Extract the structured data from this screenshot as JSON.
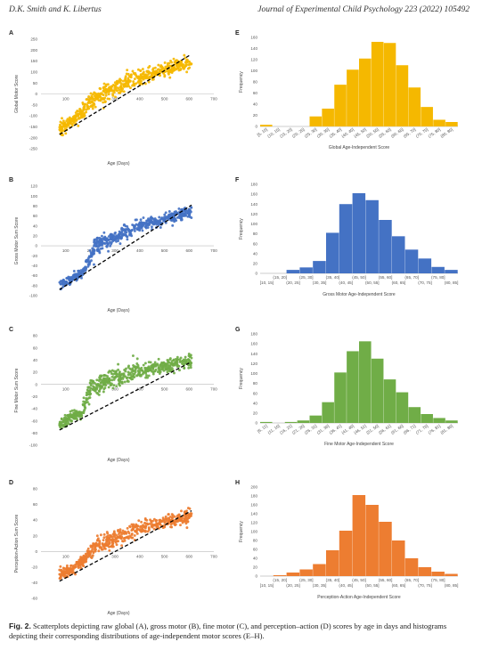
{
  "header": {
    "left": "D.K. Smith and K. Libertus",
    "right": "Journal of Experimental Child Psychology 223 (2022) 105492"
  },
  "caption": {
    "prefix": "Fig. 2.",
    "text": "Scatterplots depicting raw global (A), gross motor (B), fine motor (C), and perception–action (D) scores by age in days and histograms depicting their corresponding distributions of age-independent motor scores (E–H)."
  },
  "colors": {
    "A": "#F5B800",
    "B": "#4472C4",
    "C": "#70AD47",
    "D": "#ED7D31",
    "trend": "#000000"
  },
  "chart_data": [
    {
      "panel": "A",
      "type": "scatter",
      "xlabel": "Age (Days)",
      "ylabel": "Global Motor Score",
      "xlim": [
        0,
        700
      ],
      "ylim": [
        -250,
        250
      ],
      "x_ticks": [
        100,
        200,
        300,
        400,
        500,
        600,
        700
      ],
      "y_ticks": [
        250,
        200,
        150,
        100,
        50,
        0,
        -50,
        -100,
        -150,
        -200,
        -250
      ],
      "trend": {
        "style": "dashed",
        "x": [
          75,
          600
        ],
        "y": [
          -185,
          175
        ]
      },
      "clusters": [
        {
          "x": [
            75,
            165
          ],
          "y_at_start": -165,
          "y_at_end": -85,
          "n": 115,
          "spread": 25
        },
        {
          "x": [
            165,
            205
          ],
          "y_at_start": -85,
          "y_at_end": -25,
          "n": 45,
          "spread": 32
        },
        {
          "x": [
            205,
            325
          ],
          "y_at_start": -30,
          "y_at_end": 45,
          "n": 135,
          "spread": 35
        },
        {
          "x": [
            325,
            395
          ],
          "y_at_start": 40,
          "y_at_end": 75,
          "n": 60,
          "spread": 35
        },
        {
          "x": [
            395,
            610
          ],
          "y_at_start": 70,
          "y_at_end": 150,
          "n": 210,
          "spread": 28
        }
      ]
    },
    {
      "panel": "B",
      "type": "scatter",
      "xlabel": "Age (Days)",
      "ylabel": "Gross Motor Sum Score",
      "xlim": [
        0,
        700
      ],
      "ylim": [
        -100,
        120
      ],
      "x_ticks": [
        100,
        200,
        300,
        400,
        500,
        600,
        700
      ],
      "y_ticks": [
        120,
        100,
        80,
        60,
        40,
        20,
        0,
        -20,
        -40,
        -60,
        -80,
        -100
      ],
      "trend": {
        "style": "dashed",
        "x": [
          75,
          610
        ],
        "y": [
          -88,
          82
        ]
      },
      "clusters": [
        {
          "x": [
            75,
            175
          ],
          "y_at_start": -78,
          "y_at_end": -52,
          "n": 110,
          "spread": 9
        },
        {
          "x": [
            175,
            215
          ],
          "y_at_start": -45,
          "y_at_end": -10,
          "n": 45,
          "spread": 14
        },
        {
          "x": [
            215,
            330
          ],
          "y_at_start": 0,
          "y_at_end": 25,
          "n": 140,
          "spread": 13
        },
        {
          "x": [
            330,
            400
          ],
          "y_at_start": 25,
          "y_at_end": 40,
          "n": 60,
          "spread": 14
        },
        {
          "x": [
            400,
            610
          ],
          "y_at_start": 40,
          "y_at_end": 70,
          "n": 210,
          "spread": 11
        }
      ]
    },
    {
      "panel": "C",
      "type": "scatter",
      "xlabel": "Age (Days)",
      "ylabel": "Fine Motor Sum Score",
      "xlim": [
        0,
        700
      ],
      "ylim": [
        -100,
        80
      ],
      "x_ticks": [
        100,
        200,
        300,
        400,
        500,
        600,
        700
      ],
      "y_ticks": [
        80,
        60,
        40,
        20,
        0,
        -20,
        -40,
        -60,
        -80,
        -100
      ],
      "trend": {
        "style": "dashed",
        "x": [
          75,
          600
        ],
        "y": [
          -75,
          35
        ]
      },
      "clusters": [
        {
          "x": [
            75,
            165
          ],
          "y_at_start": -65,
          "y_at_end": -45,
          "n": 110,
          "spread": 9
        },
        {
          "x": [
            165,
            205
          ],
          "y_at_start": -45,
          "y_at_end": -5,
          "n": 45,
          "spread": 14
        },
        {
          "x": [
            205,
            325
          ],
          "y_at_start": -5,
          "y_at_end": 15,
          "n": 135,
          "spread": 14
        },
        {
          "x": [
            325,
            395
          ],
          "y_at_start": 10,
          "y_at_end": 25,
          "n": 60,
          "spread": 14
        },
        {
          "x": [
            395,
            610
          ],
          "y_at_start": 20,
          "y_at_end": 40,
          "n": 210,
          "spread": 10
        }
      ]
    },
    {
      "panel": "D",
      "type": "scatter",
      "xlabel": "Age (Days)",
      "ylabel": "Perception-Action Sum Score",
      "xlim": [
        0,
        700
      ],
      "ylim": [
        -60,
        80
      ],
      "x_ticks": [
        100,
        200,
        300,
        400,
        500,
        600,
        700
      ],
      "y_ticks": [
        80,
        60,
        40,
        20,
        0,
        -20,
        -40,
        -60
      ],
      "trend": {
        "style": "dashed",
        "x": [
          75,
          610
        ],
        "y": [
          -38,
          52
        ]
      },
      "clusters": [
        {
          "x": [
            75,
            165
          ],
          "y_at_start": -30,
          "y_at_end": -15,
          "n": 110,
          "spread": 7
        },
        {
          "x": [
            165,
            205
          ],
          "y_at_start": -15,
          "y_at_end": 0,
          "n": 45,
          "spread": 9
        },
        {
          "x": [
            205,
            325
          ],
          "y_at_start": 5,
          "y_at_end": 20,
          "n": 135,
          "spread": 10
        },
        {
          "x": [
            325,
            395
          ],
          "y_at_start": 20,
          "y_at_end": 30,
          "n": 60,
          "spread": 10
        },
        {
          "x": [
            395,
            610
          ],
          "y_at_start": 30,
          "y_at_end": 45,
          "n": 210,
          "spread": 8
        }
      ]
    },
    {
      "panel": "E",
      "type": "bar",
      "xlabel": "Global Age-Independent Score",
      "ylabel": "Frequency",
      "ylim": [
        0,
        160
      ],
      "y_ticks": [
        0,
        20,
        40,
        60,
        80,
        100,
        120,
        140,
        160
      ],
      "categories": [
        "[5, 10]",
        "(10, 15]",
        "(15, 20]",
        "(20, 25]",
        "(25, 30]",
        "(30, 35]",
        "(35, 40]",
        "(40, 45]",
        "(45, 50]",
        "(50, 55]",
        "(55, 60]",
        "(60, 65]",
        "(65, 70]",
        "(70, 75]",
        "(75, 80]",
        "(80, 85]"
      ],
      "values": [
        3,
        0,
        0,
        0,
        18,
        32,
        75,
        102,
        122,
        152,
        150,
        110,
        70,
        35,
        12,
        8
      ]
    },
    {
      "panel": "F",
      "type": "bar",
      "xlabel": "Gross Motor Age-Independent Score",
      "ylabel": "Frequency",
      "ylim": [
        0,
        180
      ],
      "y_ticks": [
        0,
        20,
        40,
        60,
        80,
        100,
        120,
        140,
        160,
        180
      ],
      "categories": [
        "[10, 15]",
        "(15, 20]",
        "(20, 25]",
        "(25, 30]",
        "(30, 35]",
        "(35, 40]",
        "(40, 45]",
        "(45, 50]",
        "(50, 55]",
        "(55, 60]",
        "(60, 65]",
        "(65, 70]",
        "(70, 75]",
        "(75, 80]",
        "(80, 85]"
      ],
      "values": [
        0,
        0,
        7,
        12,
        25,
        82,
        140,
        162,
        148,
        108,
        75,
        48,
        30,
        13,
        7
      ]
    },
    {
      "panel": "G",
      "type": "bar",
      "xlabel": "Fine Motor Age-Independent Score",
      "ylabel": "Frequency",
      "ylim": [
        0,
        180
      ],
      "y_ticks": [
        0,
        20,
        40,
        60,
        80,
        100,
        120,
        140,
        160,
        180
      ],
      "categories": [
        "[6, 11]",
        "(11, 16]",
        "(16, 21]",
        "(21, 26]",
        "(26, 31]",
        "(31, 36]",
        "(36, 41]",
        "(41, 46]",
        "(46, 51]",
        "(51, 56]",
        "(56, 61]",
        "(61, 66]",
        "(66, 71]",
        "(71, 76]",
        "(76, 81]",
        "(81, 86]"
      ],
      "values": [
        2,
        0,
        2,
        5,
        15,
        42,
        102,
        145,
        165,
        130,
        88,
        62,
        32,
        18,
        10,
        5
      ]
    },
    {
      "panel": "H",
      "type": "bar",
      "xlabel": "Perception-Action Age-Independent Score",
      "ylabel": "Frequency",
      "ylim": [
        0,
        200
      ],
      "y_ticks": [
        0,
        20,
        40,
        60,
        80,
        100,
        120,
        140,
        160,
        180,
        200
      ],
      "categories": [
        "[10, 15]",
        "(15, 20]",
        "(20, 25]",
        "(25, 30]",
        "(30, 35]",
        "(35, 40]",
        "(40, 45]",
        "(45, 50]",
        "(50, 55]",
        "(55, 60]",
        "(60, 65]",
        "(65, 70]",
        "(70, 75]",
        "(75, 80]",
        "(80, 85]"
      ],
      "values": [
        0,
        2,
        8,
        15,
        27,
        58,
        102,
        182,
        160,
        122,
        80,
        40,
        20,
        10,
        5
      ]
    }
  ]
}
